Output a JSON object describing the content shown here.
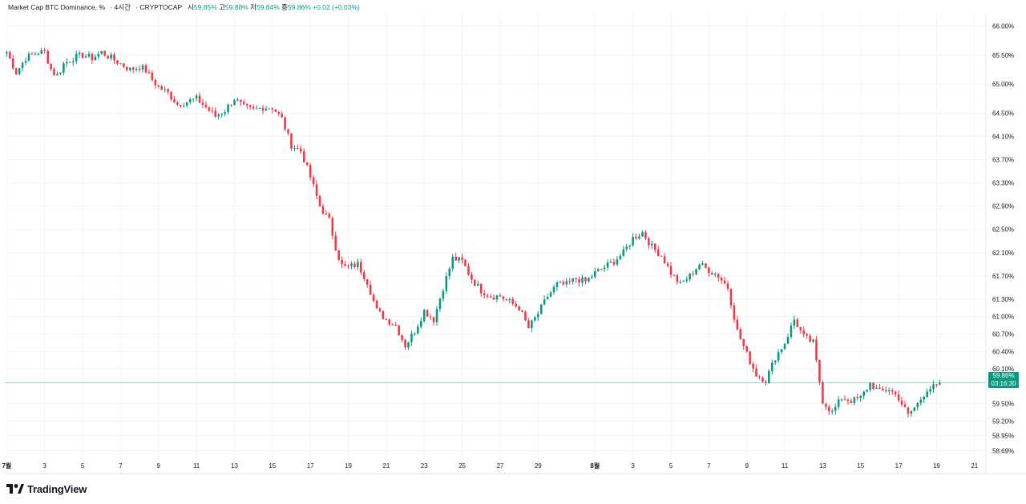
{
  "header": {
    "symbol": "Market Cap BTC Dominance, %",
    "interval": "4시간",
    "exchange": "CRYPTOCAP",
    "open_label": "시",
    "open_value": "59.85%",
    "high_label": "고",
    "high_value": "59.88%",
    "low_label": "저",
    "low_value": "59.84%",
    "close_label": "종",
    "close_value": "59.86%",
    "change": "+0.02 (+0.03%)"
  },
  "price_label": {
    "value": "59.86%",
    "countdown": "03:16:30"
  },
  "brand": {
    "name": "TradingView"
  },
  "colors": {
    "up": "#089981",
    "down": "#f23645",
    "grid": "#f0f3fa",
    "axis": "#e0e3eb",
    "last_line": "#089981"
  },
  "chart_data": {
    "type": "candlestick",
    "title": "Market Cap BTC Dominance, %",
    "y_unit": "%",
    "ylim": [
      58.6,
      66.2
    ],
    "y_ticks": [
      "66.00%",
      "65.50%",
      "65.00%",
      "64.50%",
      "64.10%",
      "63.70%",
      "63.30%",
      "62.90%",
      "62.50%",
      "62.10%",
      "61.70%",
      "61.30%",
      "61.00%",
      "60.70%",
      "60.40%",
      "60.10%",
      "59.50%",
      "59.20%",
      "58.95%",
      "58.69%"
    ],
    "x_ticks": [
      "7월",
      "3",
      "5",
      "7",
      "9",
      "11",
      "13",
      "15",
      "17",
      "19",
      "21",
      "23",
      "25",
      "27",
      "29",
      "8월",
      "3",
      "5",
      "7",
      "9",
      "11",
      "13",
      "15",
      "17",
      "19",
      "21"
    ],
    "x_tick_days": [
      1,
      3,
      5,
      7,
      9,
      11,
      13,
      15,
      17,
      19,
      21,
      23,
      25,
      27,
      29,
      32,
      34,
      36,
      38,
      40,
      42,
      44,
      46,
      48,
      50,
      52
    ],
    "days_span": [
      0.9,
      52.6
    ],
    "candles_per_day": 6,
    "start_day": 1,
    "last_price": 59.86,
    "close_path": [
      [
        1,
        65.55
      ],
      [
        1.5,
        65.2
      ],
      [
        2,
        65.45
      ],
      [
        2.6,
        65.55
      ],
      [
        3,
        65.55
      ],
      [
        3.4,
        65.2
      ],
      [
        3.7,
        65.15
      ],
      [
        4,
        65.35
      ],
      [
        4.5,
        65.45
      ],
      [
        5,
        65.5
      ],
      [
        5.5,
        65.45
      ],
      [
        6,
        65.55
      ],
      [
        6.5,
        65.45
      ],
      [
        7,
        65.35
      ],
      [
        7.5,
        65.25
      ],
      [
        8,
        65.3
      ],
      [
        8.3,
        65.25
      ],
      [
        8.6,
        65.1
      ],
      [
        9,
        64.95
      ],
      [
        9.5,
        64.85
      ],
      [
        10,
        64.65
      ],
      [
        10.5,
        64.7
      ],
      [
        11,
        64.75
      ],
      [
        11.5,
        64.6
      ],
      [
        12,
        64.45
      ],
      [
        12.5,
        64.55
      ],
      [
        13,
        64.75
      ],
      [
        13.5,
        64.6
      ],
      [
        14,
        64.55
      ],
      [
        14.5,
        64.6
      ],
      [
        15,
        64.6
      ],
      [
        15.5,
        64.4
      ],
      [
        16,
        63.95
      ],
      [
        16.5,
        63.85
      ],
      [
        17,
        63.4
      ],
      [
        17.5,
        62.9
      ],
      [
        18,
        62.65
      ],
      [
        18.4,
        62.1
      ],
      [
        18.7,
        61.85
      ],
      [
        19,
        61.85
      ],
      [
        19.5,
        61.9
      ],
      [
        20,
        61.6
      ],
      [
        20.5,
        61.1
      ],
      [
        21,
        60.95
      ],
      [
        21.5,
        60.85
      ],
      [
        22,
        60.5
      ],
      [
        22.5,
        60.75
      ],
      [
        23,
        61.1
      ],
      [
        23.5,
        60.95
      ],
      [
        24,
        61.5
      ],
      [
        24.5,
        62.0
      ],
      [
        25,
        61.95
      ],
      [
        25.5,
        61.65
      ],
      [
        26,
        61.45
      ],
      [
        26.5,
        61.35
      ],
      [
        27,
        61.35
      ],
      [
        27.5,
        61.25
      ],
      [
        28,
        61.15
      ],
      [
        28.5,
        60.8
      ],
      [
        29,
        61.05
      ],
      [
        29.5,
        61.35
      ],
      [
        30,
        61.55
      ],
      [
        30.5,
        61.55
      ],
      [
        31,
        61.65
      ],
      [
        31.5,
        61.6
      ],
      [
        32,
        61.75
      ],
      [
        32.5,
        61.85
      ],
      [
        33,
        61.95
      ],
      [
        33.5,
        62.1
      ],
      [
        34,
        62.35
      ],
      [
        34.5,
        62.45
      ],
      [
        35,
        62.2
      ],
      [
        35.5,
        62.05
      ],
      [
        36,
        61.75
      ],
      [
        36.5,
        61.55
      ],
      [
        37,
        61.7
      ],
      [
        37.5,
        61.9
      ],
      [
        38,
        61.8
      ],
      [
        38.5,
        61.7
      ],
      [
        39,
        61.5
      ],
      [
        39.5,
        60.75
      ],
      [
        40,
        60.35
      ],
      [
        40.5,
        60.0
      ],
      [
        41,
        59.9
      ],
      [
        41.5,
        60.3
      ],
      [
        42,
        60.55
      ],
      [
        42.5,
        60.95
      ],
      [
        43,
        60.65
      ],
      [
        43.5,
        60.55
      ],
      [
        44,
        59.55
      ],
      [
        44.5,
        59.35
      ],
      [
        45,
        59.6
      ],
      [
        45.5,
        59.55
      ],
      [
        46,
        59.6
      ],
      [
        46.5,
        59.85
      ],
      [
        47,
        59.7
      ],
      [
        47.5,
        59.75
      ],
      [
        48,
        59.6
      ],
      [
        48.5,
        59.3
      ],
      [
        49,
        59.5
      ],
      [
        49.5,
        59.75
      ],
      [
        50,
        59.8
      ],
      [
        50.3,
        59.86
      ]
    ]
  }
}
